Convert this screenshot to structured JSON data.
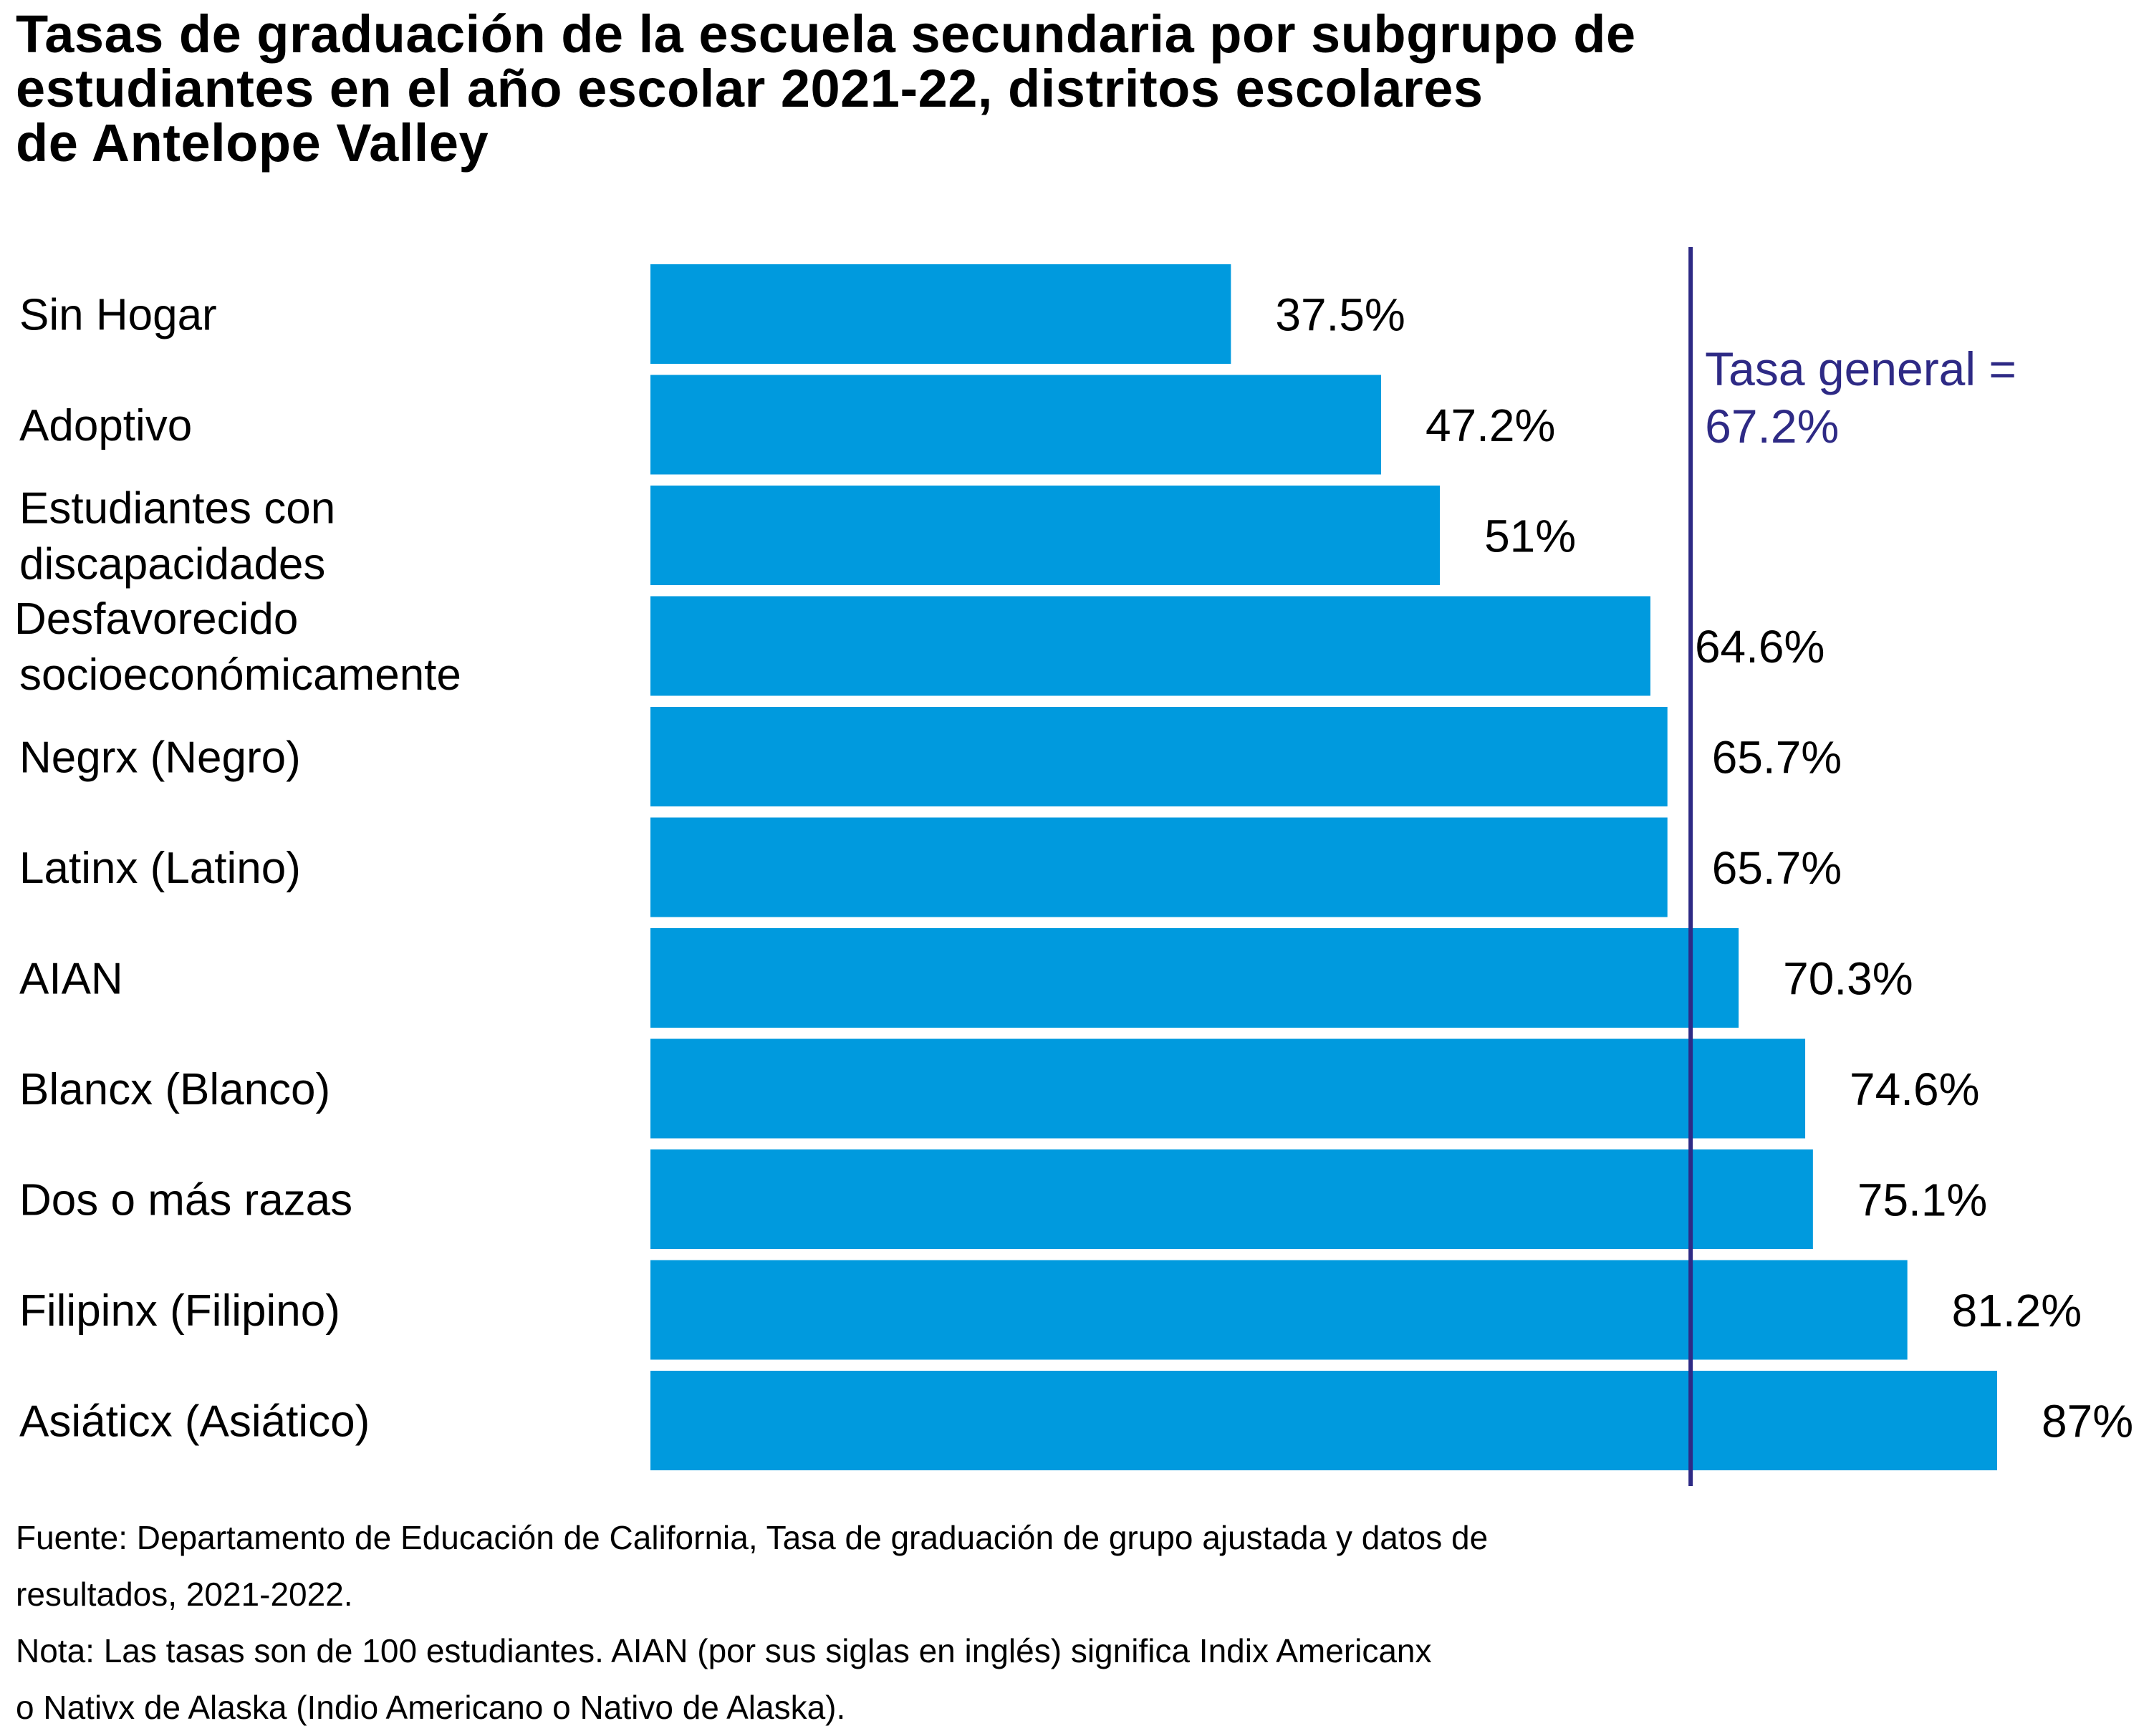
{
  "title_lines": [
    "Tasas de graduación de la escuela secundaria por subgrupo de",
    "estudiantes en el año escolar 2021-22, distritos escolares",
    "de Antelope Valley"
  ],
  "chart_data": {
    "type": "bar",
    "orientation": "horizontal",
    "categories": [
      [
        "Sin Hogar"
      ],
      [
        "Adoptivo"
      ],
      [
        "Estudiantes con",
        "discapacidades"
      ],
      [
        "Desfavorecido",
        "socioeconómicamente"
      ],
      [
        "Negrx (Negro)"
      ],
      [
        "Latinx (Latino)"
      ],
      [
        "AIAN"
      ],
      [
        "Blancx (Blanco)"
      ],
      [
        "Dos o más razas"
      ],
      [
        "Filipinx (Filipino)"
      ],
      [
        "Asiáticx (Asiático)"
      ]
    ],
    "values": [
      37.5,
      47.2,
      51,
      64.6,
      65.7,
      65.7,
      70.3,
      74.6,
      75.1,
      81.2,
      87
    ],
    "value_labels": [
      "37.5%",
      "47.2%",
      "51%",
      "64.6%",
      "65.7%",
      "65.7%",
      "70.3%",
      "74.6%",
      "75.1%",
      "81.2%",
      "87%"
    ],
    "xlim": [
      0,
      87
    ],
    "grid": false,
    "bar_color": "#009ADE",
    "reference_line": {
      "value": 67.2,
      "label_lines": [
        "Tasa general =",
        "67.2%"
      ],
      "color": "#2E2A85"
    }
  },
  "notes": [
    "Fuente: Departamento de Educación de California, Tasa de graduación de grupo ajustada y datos de",
    "resultados, 2021-2022.",
    "Nota: Las tasas son de 100 estudiantes. AIAN (por sus siglas en inglés) significa Indix Americanx",
    "o Nativx de Alaska (Indio Americano o Nativo de Alaska)."
  ]
}
